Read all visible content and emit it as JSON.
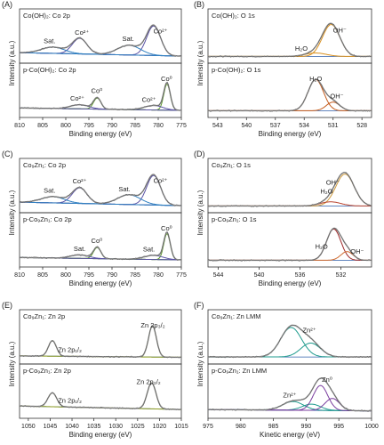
{
  "chart_data": [
    {
      "id": "A",
      "type": "line",
      "title": "(A)",
      "xlabel": "Binding energy (eV)",
      "ylabel": "Intensity (a.u.)",
      "xlim": [
        810,
        775
      ],
      "xticks": [
        810,
        805,
        800,
        795,
        790,
        785,
        780,
        775
      ],
      "reversed": true,
      "subpanels": [
        {
          "label": "Co(OH)₂: Co 2p",
          "annotations": [
            {
              "text": "Sat.",
              "x": 803.5
            },
            {
              "text": "Co²⁺",
              "x": 796.5
            },
            {
              "text": "Sat.",
              "x": 786.5
            },
            {
              "text": "Co²⁺",
              "x": 779.5
            }
          ],
          "peaks": [
            {
              "center": 797.0,
              "height": 0.45,
              "width": 1.6,
              "color": "#5b53a5"
            },
            {
              "center": 781.0,
              "height": 0.85,
              "width": 1.5,
              "color": "#5b53a5"
            },
            {
              "center": 802.8,
              "height": 0.18,
              "width": 2.5,
              "color": "#2f7fc0"
            },
            {
              "center": 786.3,
              "height": 0.28,
              "width": 2.5,
              "color": "#2f7fc0"
            }
          ],
          "baseline": [
            0.15,
            0.05
          ]
        },
        {
          "label": "p-Co(OH)₂: Co 2p",
          "annotations": [
            {
              "text": "Co²⁺",
              "x": 797.5
            },
            {
              "text": "Co⁰",
              "x": 793.3
            },
            {
              "text": "Co²⁺",
              "x": 782.0
            },
            {
              "text": "Co⁰",
              "x": 778.2
            }
          ],
          "peaks": [
            {
              "center": 793.2,
              "height": 0.32,
              "width": 0.8,
              "color": "#5e9b2a"
            },
            {
              "center": 778.1,
              "height": 0.75,
              "width": 0.7,
              "color": "#5e9b2a"
            },
            {
              "center": 797.0,
              "height": 0.12,
              "width": 2.0,
              "color": "#5b53a5"
            },
            {
              "center": 781.0,
              "height": 0.13,
              "width": 2.0,
              "color": "#5b53a5"
            }
          ],
          "baseline": [
            0.12,
            0.05
          ]
        }
      ]
    },
    {
      "id": "B",
      "type": "line",
      "title": "(B)",
      "xlabel": "Binding energy (eV)",
      "ylabel": "Intensity (a.u.)",
      "xlim": [
        544,
        527
      ],
      "xticks": [
        543,
        540,
        537,
        534,
        531,
        528
      ],
      "reversed": true,
      "subpanels": [
        {
          "label": "Co(OH)₂: O 1s",
          "annotations": [
            {
              "text": "OH⁻",
              "x": 530.3
            },
            {
              "text": "H₂O",
              "x": 534.3
            }
          ],
          "peaks": [
            {
              "center": 531.2,
              "height": 0.92,
              "width": 0.9,
              "color": "#d9901e"
            },
            {
              "center": 532.8,
              "height": 0.1,
              "width": 1.1,
              "color": "#d9901e"
            }
          ],
          "baseline": [
            0.04,
            0.04
          ]
        },
        {
          "label": "p-Co(OH)₂: O 1s",
          "annotations": [
            {
              "text": "H₂O",
              "x": 532.8
            },
            {
              "text": "OH⁻",
              "x": 530.6
            }
          ],
          "peaks": [
            {
              "center": 532.8,
              "height": 0.9,
              "width": 0.8,
              "color": "#c45a1a"
            },
            {
              "center": 531.0,
              "height": 0.25,
              "width": 0.7,
              "color": "#c45a1a"
            }
          ],
          "baseline": [
            0.04,
            0.04
          ]
        }
      ]
    },
    {
      "id": "C",
      "type": "line",
      "title": "(C)",
      "xlabel": "Binding energy (eV)",
      "ylabel": "Intensity (a.u.)",
      "xlim": [
        810,
        775
      ],
      "xticks": [
        810,
        805,
        800,
        795,
        790,
        785,
        780,
        775
      ],
      "reversed": true,
      "subpanels": [
        {
          "label": "Co₉Zn₁: Co 2p",
          "annotations": [
            {
              "text": "Sat.",
              "x": 803.5
            },
            {
              "text": "Co²⁺",
              "x": 797.0
            },
            {
              "text": "Sat.",
              "x": 787.3
            },
            {
              "text": "Co²⁺",
              "x": 779.5
            }
          ],
          "peaks": [
            {
              "center": 797.0,
              "height": 0.45,
              "width": 1.6,
              "color": "#5b53a5"
            },
            {
              "center": 781.0,
              "height": 0.85,
              "width": 1.5,
              "color": "#5b53a5"
            },
            {
              "center": 802.8,
              "height": 0.18,
              "width": 2.5,
              "color": "#2f7fc0"
            },
            {
              "center": 786.3,
              "height": 0.28,
              "width": 2.5,
              "color": "#2f7fc0"
            }
          ],
          "baseline": [
            0.15,
            0.05
          ]
        },
        {
          "label": "p-Co₉Zn₁: Co 2p",
          "annotations": [
            {
              "text": "Sat.",
              "x": 797.0
            },
            {
              "text": "Co⁰",
              "x": 793.3
            },
            {
              "text": "Sat.",
              "x": 782.0
            },
            {
              "text": "Co⁰",
              "x": 778.2
            }
          ],
          "peaks": [
            {
              "center": 793.2,
              "height": 0.32,
              "width": 0.8,
              "color": "#5e9b2a"
            },
            {
              "center": 778.1,
              "height": 0.75,
              "width": 0.7,
              "color": "#5e9b2a"
            },
            {
              "center": 797.0,
              "height": 0.1,
              "width": 2.0,
              "color": "#5b53a5"
            },
            {
              "center": 781.0,
              "height": 0.12,
              "width": 2.0,
              "color": "#5b53a5"
            }
          ],
          "baseline": [
            0.12,
            0.05
          ]
        }
      ]
    },
    {
      "id": "D",
      "type": "line",
      "title": "(D)",
      "xlabel": "Binding energy (eV)",
      "ylabel": "Intensity (a.u.)",
      "xlim": [
        545,
        529
      ],
      "xticks": [
        544,
        540,
        536,
        532
      ],
      "reversed": true,
      "subpanels": [
        {
          "label": "Co₉Zn₁: O 1s",
          "annotations": [
            {
              "text": "OH⁻",
              "x": 532.8
            },
            {
              "text": "H₂O",
              "x": 533.4
            }
          ],
          "peaks": [
            {
              "center": 531.6,
              "height": 0.92,
              "width": 0.9,
              "color": "#cf9a3c"
            },
            {
              "center": 533.0,
              "height": 0.12,
              "width": 1.0,
              "color": "#b8432f"
            }
          ],
          "baseline": [
            0.04,
            0.04
          ]
        },
        {
          "label": "p-Co₉Zn₁: O 1s",
          "annotations": [
            {
              "text": "H₂O",
              "x": 533.9
            },
            {
              "text": "OH⁻",
              "x": 530.4
            }
          ],
          "peaks": [
            {
              "center": 532.7,
              "height": 0.9,
              "width": 0.7,
              "color": "#9c2727"
            },
            {
              "center": 531.4,
              "height": 0.25,
              "width": 0.6,
              "color": "#cf6a2f"
            }
          ],
          "baseline": [
            0.04,
            0.04
          ]
        }
      ]
    },
    {
      "id": "E",
      "type": "line",
      "title": "(E)",
      "xlabel": "Binding energy (eV)",
      "ylabel": "Intensity (a.u.)",
      "xlim": [
        1052,
        1015
      ],
      "xticks": [
        1050,
        1045,
        1040,
        1035,
        1030,
        1025,
        1020,
        1015
      ],
      "reversed": true,
      "subpanels": [
        {
          "label": "Co₉Zn₁: Zn 2p",
          "annotations": [
            {
              "text": "Zn 2p₁/₂",
              "x": 1040.5
            },
            {
              "text": "Zn 2p₃/₂",
              "x": 1021.5
            }
          ],
          "peaks": [
            {
              "center": 1044.5,
              "height": 0.45,
              "width": 0.9,
              "color": "#8b9a1f"
            },
            {
              "center": 1021.6,
              "height": 0.9,
              "width": 0.9,
              "color": "#8b9a1f"
            }
          ],
          "baseline": [
            0.08,
            0.04
          ]
        },
        {
          "label": "p-Co₉Zn₁: Zn 2p",
          "annotations": [
            {
              "text": "Zn 2p₁/₂",
              "x": 1040.5
            },
            {
              "text": "Zn 2p₃/₂",
              "x": 1022.5
            }
          ],
          "peaks": [
            {
              "center": 1044.5,
              "height": 0.4,
              "width": 1.0,
              "color": "#8b9a1f"
            },
            {
              "center": 1021.8,
              "height": 0.75,
              "width": 1.0,
              "color": "#8b9a1f"
            }
          ],
          "baseline": [
            0.2,
            0.1
          ]
        }
      ]
    },
    {
      "id": "F",
      "type": "line",
      "title": "(F)",
      "xlabel": "Kinetic energy (eV)",
      "ylabel": "Intensity (a.u.)",
      "xlim": [
        975,
        1000
      ],
      "xticks": [
        975,
        980,
        985,
        990,
        995,
        1000
      ],
      "reversed": false,
      "subpanels": [
        {
          "label": "Co₉Zn₁: Zn LMM",
          "annotations": [
            {
              "text": "Zn²⁺",
              "x": 990.5
            }
          ],
          "peaks": [
            {
              "center": 987.7,
              "height": 0.85,
              "width": 1.6,
              "color": "#1f9b8e"
            },
            {
              "center": 990.7,
              "height": 0.4,
              "width": 1.5,
              "color": "#1f9b8e"
            }
          ],
          "baseline": [
            0.05,
            0.05
          ]
        },
        {
          "label": "p-Co₉Zn₁: Zn LMM",
          "annotations": [
            {
              "text": "Zn²⁺",
              "x": 987.5
            },
            {
              "text": "Zn⁰",
              "x": 993.2
            }
          ],
          "peaks": [
            {
              "center": 988.0,
              "height": 0.25,
              "width": 1.6,
              "color": "#1f9b8e"
            },
            {
              "center": 990.8,
              "height": 0.18,
              "width": 1.4,
              "color": "#1f9b8e"
            },
            {
              "center": 992.2,
              "height": 0.72,
              "width": 1.1,
              "color": "#7a3d9e"
            },
            {
              "center": 994.0,
              "height": 0.35,
              "width": 1.1,
              "color": "#7a3d9e"
            }
          ],
          "baseline": [
            0.1,
            0.06
          ]
        }
      ]
    }
  ]
}
